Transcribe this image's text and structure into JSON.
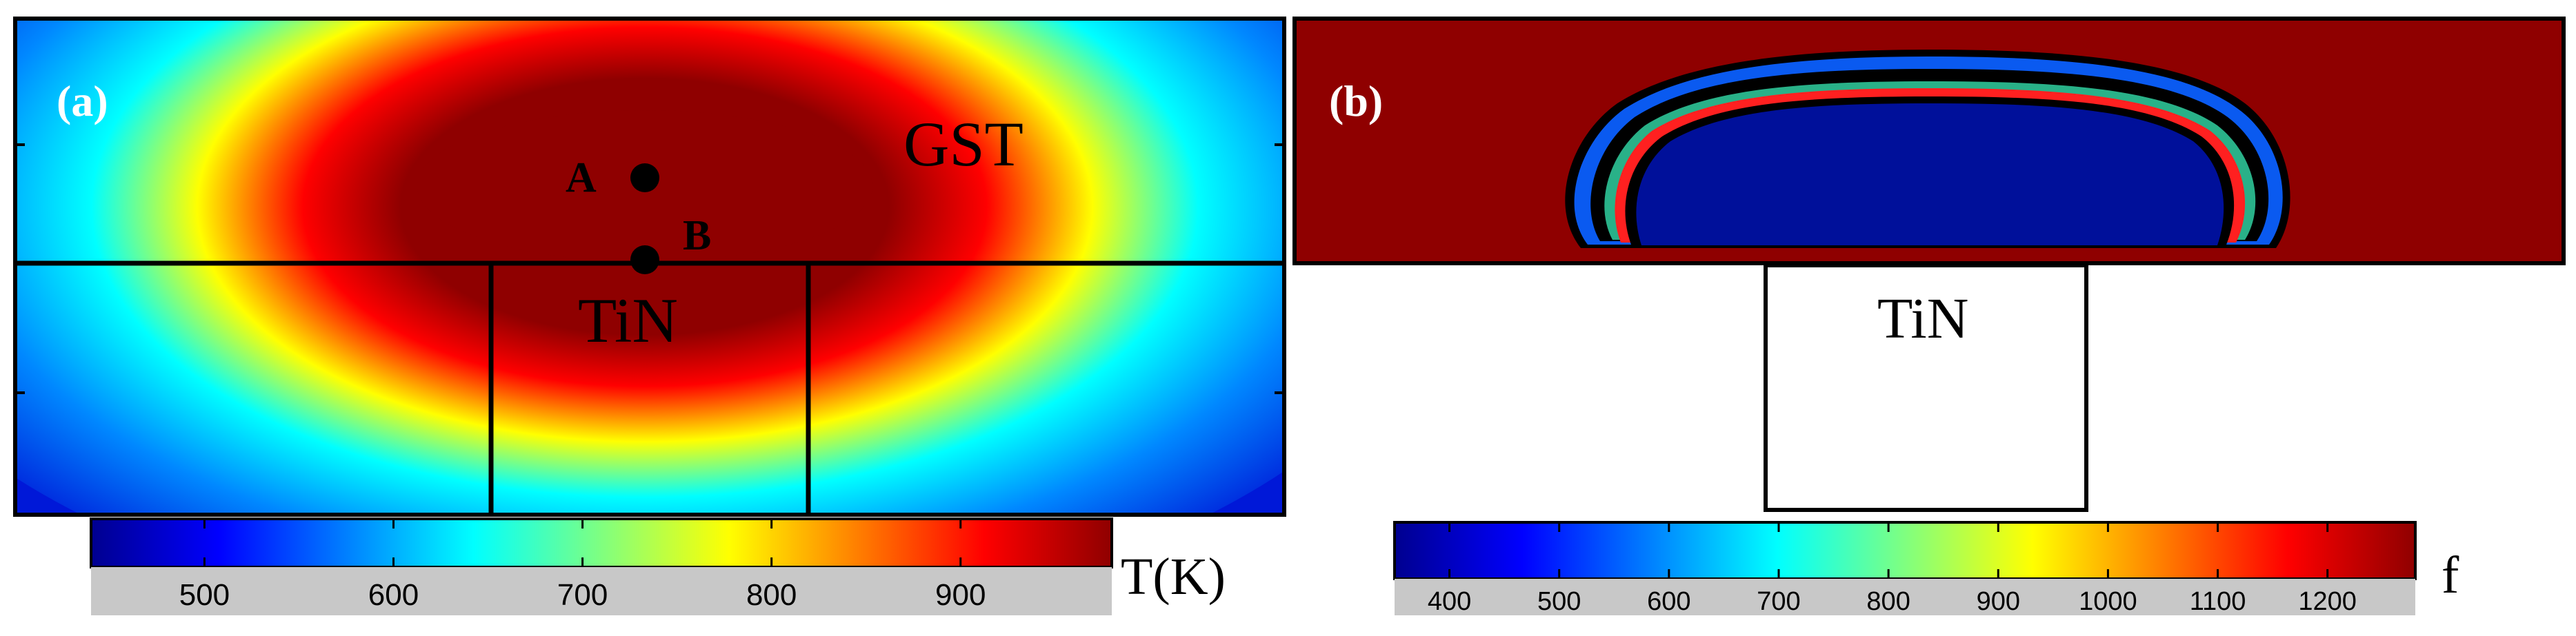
{
  "panel_a": {
    "label": "(a)",
    "top_material": "GST",
    "bottom_material": "TiN",
    "point_a": "A",
    "point_b": "B",
    "map_variable": "Temperature",
    "colorbar": {
      "title": "T(K)",
      "ticks": [
        "500",
        "600",
        "700",
        "800",
        "900"
      ],
      "range": [
        440,
        980
      ]
    }
  },
  "panel_b": {
    "label": "(b)",
    "bottom_material": "TiN",
    "colorbar": {
      "title": "f",
      "ticks": [
        "400",
        "500",
        "600",
        "700",
        "800",
        "900",
        "1000",
        "1100",
        "1200"
      ],
      "range": [
        350,
        1280
      ]
    }
  },
  "colors": {
    "jet_dark_blue": "#00008f",
    "jet_blue": "#0000ff",
    "jet_cyan": "#00ffff",
    "jet_yellow": "#ffff00",
    "jet_red": "#ff0000",
    "jet_dark_red": "#8f0000",
    "tick_strip": "#c8c8c8",
    "label_white": "#ffffff",
    "line_black": "#000000"
  }
}
